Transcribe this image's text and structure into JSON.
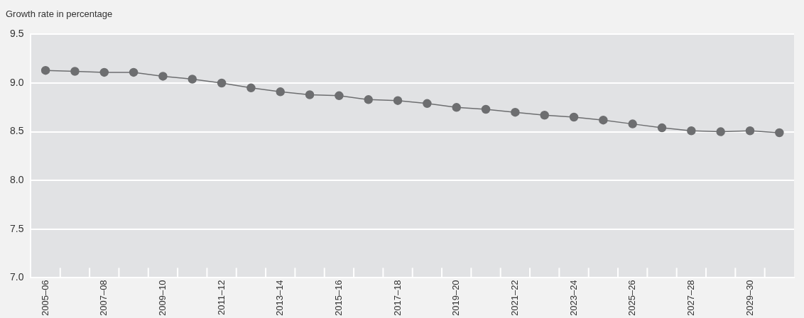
{
  "chart_data": {
    "type": "line",
    "ylabel": "Growth rate in percentage",
    "categories": [
      "2005–06",
      null,
      "2007–08",
      null,
      "2009–10",
      null,
      "2011–12",
      null,
      "2013–14",
      null,
      "2015–16",
      null,
      "2017–18",
      null,
      "2019–20",
      null,
      "2021–22",
      null,
      "2023–24",
      null,
      "2025–26",
      null,
      "2027–28",
      null,
      "2029–30",
      null
    ],
    "series": [
      {
        "color": "#6d6e70",
        "values": [
          9.13,
          9.12,
          9.11,
          9.11,
          9.07,
          9.04,
          9.0,
          8.95,
          8.91,
          8.88,
          8.87,
          8.83,
          8.82,
          8.79,
          8.75,
          8.73,
          8.7,
          8.67,
          8.65,
          8.62,
          8.58,
          8.54,
          8.51,
          8.5,
          8.51,
          8.49
        ]
      }
    ],
    "ylim": [
      7.0,
      9.5
    ],
    "yticks": [
      {
        "value": 7.0,
        "label": "7.0"
      },
      {
        "value": 7.5,
        "label": "7.5"
      },
      {
        "value": 8.0,
        "label": "8.0"
      },
      {
        "value": 8.5,
        "label": "8.5"
      },
      {
        "value": 9.0,
        "label": "9.0"
      },
      {
        "value": 9.5,
        "label": "9.5"
      }
    ],
    "grid": "y",
    "marker": "circle",
    "line_style": "solid"
  }
}
